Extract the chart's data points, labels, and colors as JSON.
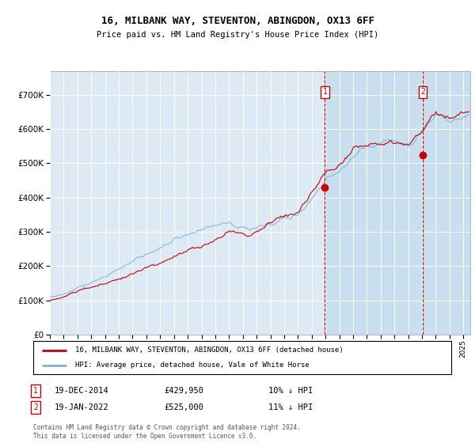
{
  "title": "16, MILBANK WAY, STEVENTON, ABINGDON, OX13 6FF",
  "subtitle": "Price paid vs. HM Land Registry's House Price Index (HPI)",
  "legend_line1": "16, MILBANK WAY, STEVENTON, ABINGDON, OX13 6FF (detached house)",
  "legend_line2": "HPI: Average price, detached house, Vale of White Horse",
  "annotation1_date": "19-DEC-2014",
  "annotation1_price": "£429,950",
  "annotation1_note": "10% ↓ HPI",
  "annotation2_date": "19-JAN-2022",
  "annotation2_price": "£525,000",
  "annotation2_note": "11% ↓ HPI",
  "footer": "Contains HM Land Registry data © Crown copyright and database right 2024.\nThis data is licensed under the Open Government Licence v3.0.",
  "hpi_color": "#7ab4d8",
  "price_color": "#cc0000",
  "annotation_color": "#cc0000",
  "background_color": "#ddeaf5",
  "shade_color": "#c8dff0",
  "ylim": [
    0,
    770000
  ],
  "yticks": [
    0,
    100000,
    200000,
    300000,
    400000,
    500000,
    600000,
    700000
  ],
  "t1": 2014.95,
  "t2": 2022.05,
  "xlim_start": 1995,
  "xlim_end": 2025.5
}
